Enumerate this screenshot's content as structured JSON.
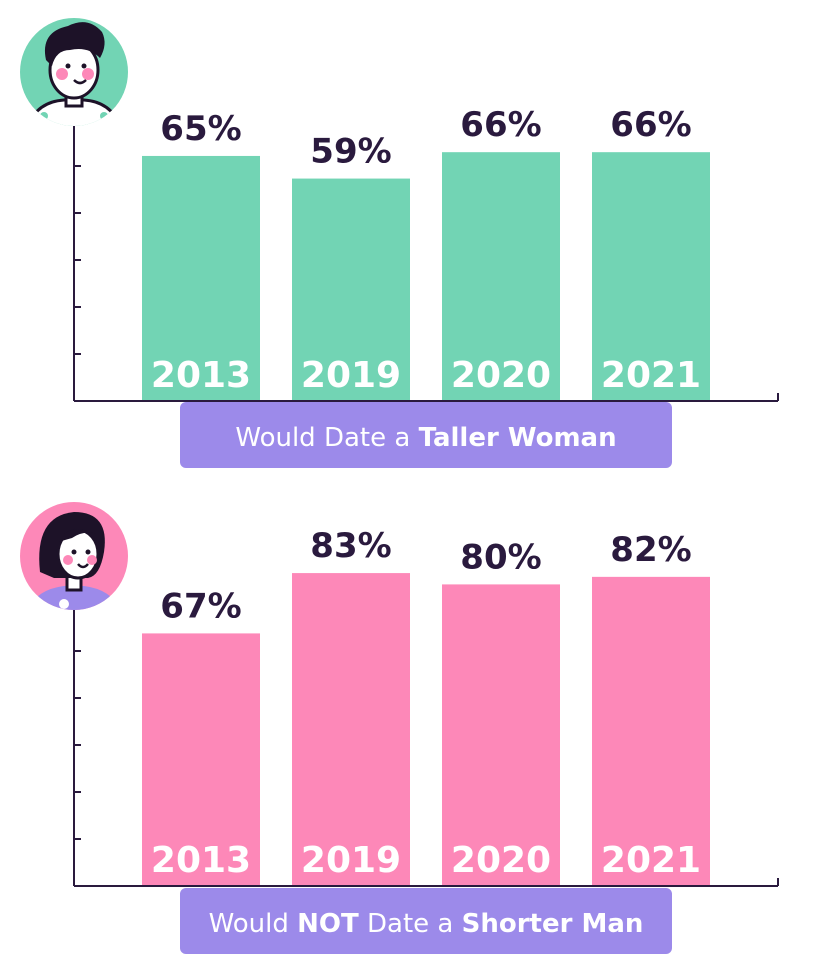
{
  "colors": {
    "axis": "#2a1a3e",
    "caption_bg": "#9c8aea",
    "caption_text": "#ffffff",
    "value_text": "#2a1a3e",
    "year_text": "#ffffff"
  },
  "chart_data": [
    {
      "type": "bar",
      "color": "#72d4b4",
      "avatar_color": "#72d4b4",
      "avatar_icon": "man-avatar-icon",
      "categories": [
        "2013",
        "2019",
        "2020",
        "2021"
      ],
      "values": [
        65,
        59,
        66,
        66
      ],
      "value_labels": [
        "65%",
        "59%",
        "66%",
        "66%"
      ],
      "caption": {
        "pre": "Would Date a ",
        "bold1": "",
        "mid": "",
        "bold2": "Taller Woman"
      },
      "title": "",
      "xlabel": "",
      "ylabel": "",
      "grid": false,
      "ylim": [
        0,
        80
      ]
    },
    {
      "type": "bar",
      "color": "#fd88b8",
      "avatar_color": "#fd88b8",
      "avatar_icon": "woman-avatar-icon",
      "categories": [
        "2013",
        "2019",
        "2020",
        "2021"
      ],
      "values": [
        67,
        83,
        80,
        82
      ],
      "value_labels": [
        "67%",
        "83%",
        "80%",
        "82%"
      ],
      "caption": {
        "pre": "Would ",
        "bold1": "NOT",
        "mid": " Date a ",
        "bold2": "Shorter Man"
      },
      "title": "",
      "xlabel": "",
      "ylabel": "",
      "grid": false,
      "ylim": [
        0,
        100
      ]
    }
  ]
}
